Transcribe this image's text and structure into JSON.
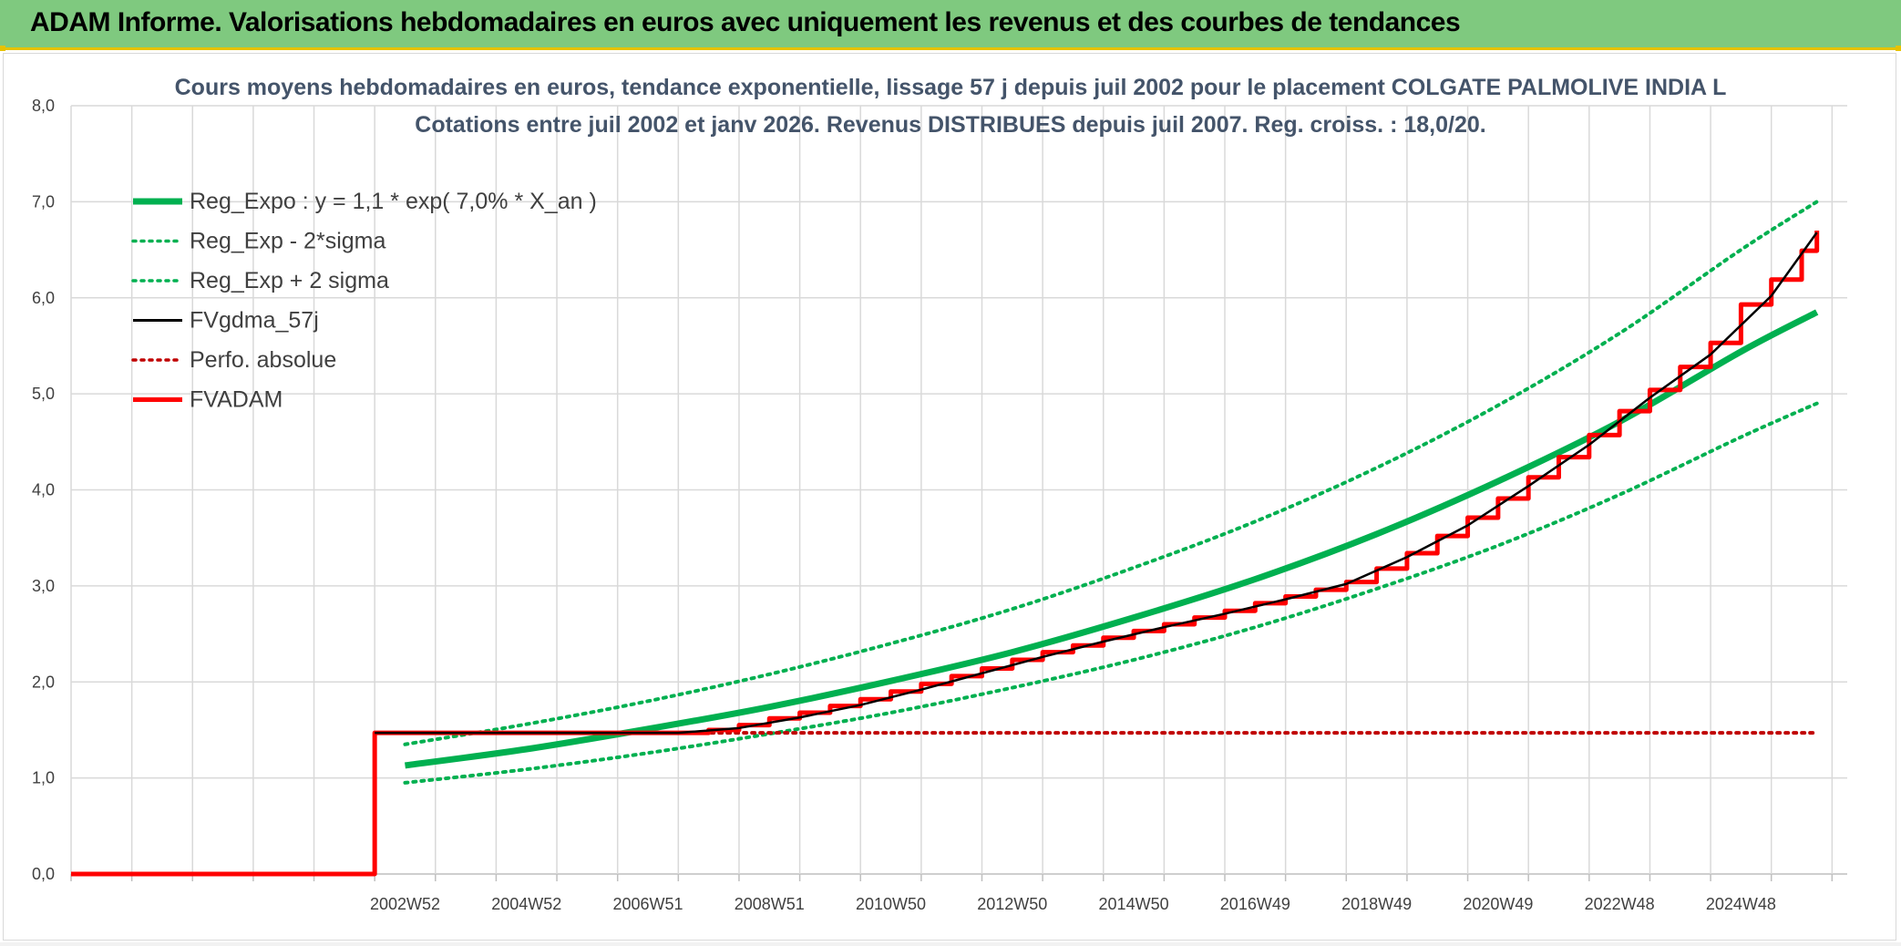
{
  "header": {
    "title": "ADAM Informe. Valorisations hebdomadaires en euros avec uniquement les revenus et des courbes de tendances"
  },
  "colors": {
    "header_bg": "#7fc97f",
    "header_border": "#e6c200",
    "trend_green": "#00b050",
    "price_black": "#000000",
    "adam_red": "#ff0000",
    "perf_red": "#c00000",
    "title_text": "#44546a",
    "grid": "#d9d9d9"
  },
  "chart_data": {
    "type": "line",
    "title": "Cours moyens hebdomadaires en euros, tendance exponentielle, lissage 57 j depuis juil 2002 pour le placement COLGATE PALMOLIVE INDIA L",
    "subtitle": "Cotations entre juil 2002 et janv 2026. Revenus DISTRIBUES depuis juil 2007. Reg. croiss. : 18,0/20.",
    "xlabel": "",
    "ylabel": "",
    "ylim": [
      0,
      8
    ],
    "xlim": [
      1997.5,
      2026.75
    ],
    "grid": true,
    "legend_position": "top-left",
    "y_ticks": [
      "0,0",
      "1,0",
      "2,0",
      "3,0",
      "4,0",
      "5,0",
      "6,0",
      "7,0",
      "8,0"
    ],
    "x_ticks": [
      {
        "label": "2002W52",
        "year": 2003.0
      },
      {
        "label": "2004W52",
        "year": 2005.0
      },
      {
        "label": "2006W51",
        "year": 2007.0
      },
      {
        "label": "2008W51",
        "year": 2009.0
      },
      {
        "label": "2010W50",
        "year": 2011.0
      },
      {
        "label": "2012W50",
        "year": 2013.0
      },
      {
        "label": "2014W50",
        "year": 2015.0
      },
      {
        "label": "2016W49",
        "year": 2017.0
      },
      {
        "label": "2018W49",
        "year": 2019.0
      },
      {
        "label": "2020W49",
        "year": 2021.0
      },
      {
        "label": "2022W48",
        "year": 2023.0
      },
      {
        "label": "2024W48",
        "year": 2025.0
      }
    ],
    "series": [
      {
        "name": "Reg_Expo : y = 1,1 * exp( 7,0% *  X_an )",
        "style": "solid-thick",
        "color": "#00b050",
        "x": [
          2003.0,
          2005.0,
          2007.0,
          2009.0,
          2011.0,
          2013.0,
          2015.0,
          2017.0,
          2019.0,
          2021.0,
          2023.0,
          2025.0,
          2026.25
        ],
        "y": [
          1.13,
          1.3,
          1.51,
          1.74,
          2.01,
          2.31,
          2.67,
          3.07,
          3.54,
          4.09,
          4.71,
          5.44,
          5.85
        ]
      },
      {
        "name": "Reg_Exp - 2*sigma",
        "style": "dotted",
        "color": "#00b050",
        "x": [
          2003.0,
          2005.0,
          2007.0,
          2009.0,
          2011.0,
          2013.0,
          2015.0,
          2017.0,
          2019.0,
          2021.0,
          2023.0,
          2025.0,
          2026.25
        ],
        "y": [
          0.95,
          1.09,
          1.26,
          1.46,
          1.68,
          1.94,
          2.23,
          2.57,
          2.97,
          3.42,
          3.95,
          4.55,
          4.9
        ]
      },
      {
        "name": "Reg_Exp + 2 sigma",
        "style": "dotted",
        "color": "#00b050",
        "x": [
          2003.0,
          2005.0,
          2007.0,
          2009.0,
          2011.0,
          2013.0,
          2015.0,
          2017.0,
          2019.0,
          2021.0,
          2023.0,
          2025.0,
          2026.25
        ],
        "y": [
          1.35,
          1.56,
          1.8,
          2.08,
          2.4,
          2.76,
          3.19,
          3.67,
          4.23,
          4.88,
          5.63,
          6.5,
          7.0
        ]
      },
      {
        "name": "FVgdma_57j",
        "style": "solid-thin",
        "color": "#000000",
        "x": [
          2002.5,
          2007.5,
          2008.5,
          2009.5,
          2010.5,
          2011.5,
          2012.5,
          2013.5,
          2014.5,
          2015.5,
          2016.5,
          2017.5,
          2018.5,
          2019.5,
          2020.5,
          2021.5,
          2022.5,
          2023.5,
          2024.5,
          2025.5,
          2026.25
        ],
        "y": [
          1.47,
          1.47,
          1.52,
          1.63,
          1.76,
          1.92,
          2.09,
          2.26,
          2.42,
          2.57,
          2.71,
          2.86,
          3.02,
          3.3,
          3.63,
          4.04,
          4.47,
          4.96,
          5.41,
          6.02,
          6.68
        ]
      },
      {
        "name": "Perfo. absolue",
        "style": "dotted",
        "color": "#c00000",
        "x": [
          2002.5,
          2026.25
        ],
        "y": [
          1.47,
          1.47
        ]
      },
      {
        "name": "FVADAM",
        "style": "step-thick",
        "color": "#ff0000",
        "x": [
          1997.5,
          2002.5,
          2002.5,
          2007.5,
          2008.0,
          2008.5,
          2009.0,
          2009.5,
          2010.0,
          2010.5,
          2011.0,
          2011.5,
          2012.0,
          2012.5,
          2013.0,
          2013.5,
          2014.0,
          2014.5,
          2015.0,
          2015.5,
          2016.0,
          2016.5,
          2017.0,
          2017.5,
          2018.0,
          2018.5,
          2019.0,
          2019.5,
          2020.0,
          2020.5,
          2021.0,
          2021.5,
          2022.0,
          2022.5,
          2023.0,
          2023.5,
          2024.0,
          2024.5,
          2025.0,
          2025.5,
          2026.0,
          2026.25
        ],
        "y": [
          0.0,
          0.0,
          1.47,
          1.47,
          1.5,
          1.55,
          1.62,
          1.68,
          1.75,
          1.82,
          1.9,
          1.98,
          2.06,
          2.14,
          2.23,
          2.31,
          2.38,
          2.46,
          2.53,
          2.6,
          2.67,
          2.74,
          2.82,
          2.89,
          2.96,
          3.04,
          3.18,
          3.34,
          3.52,
          3.71,
          3.91,
          4.13,
          4.34,
          4.57,
          4.82,
          5.04,
          5.28,
          5.53,
          5.93,
          6.19,
          6.49,
          6.7
        ]
      }
    ]
  }
}
